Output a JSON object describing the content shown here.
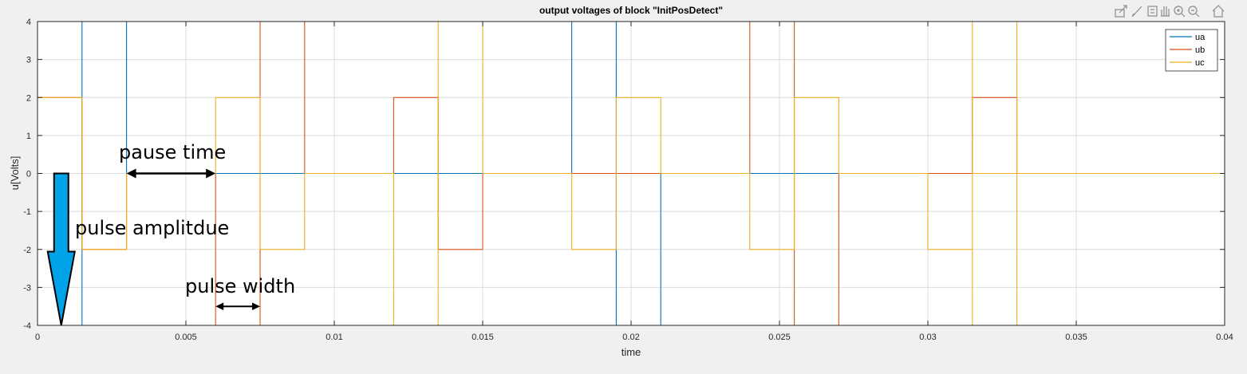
{
  "chart_data": {
    "type": "line",
    "title": "output voltages of block \"InitPosDetect\"",
    "xlabel": "time",
    "ylabel": "u[Volts]",
    "xlim": [
      0,
      0.04
    ],
    "ylim": [
      -4,
      4
    ],
    "xticks": [
      0,
      0.005,
      0.01,
      0.015,
      0.02,
      0.025,
      0.03,
      0.035,
      0.04
    ],
    "xtick_labels": [
      "0",
      "0.005",
      "0.01",
      "0.015",
      "0.02",
      "0.025",
      "0.03",
      "0.035",
      "0.04"
    ],
    "yticks": [
      -4,
      -3,
      -2,
      -1,
      0,
      1,
      2,
      3,
      4
    ],
    "ytick_labels": [
      "-4",
      "-3",
      "-2",
      "-1",
      "0",
      "1",
      "2",
      "3",
      "4"
    ],
    "grid": true,
    "legend_position": "top-right",
    "series": [
      {
        "name": "ua",
        "color": "#0072BD",
        "points": [
          [
            0,
            -4
          ],
          [
            0.0015,
            -4
          ],
          [
            0.0015,
            4
          ],
          [
            0.003,
            4
          ],
          [
            0.003,
            0
          ],
          [
            0.018,
            0
          ],
          [
            0.018,
            4
          ],
          [
            0.0195,
            4
          ],
          [
            0.0195,
            -4
          ],
          [
            0.021,
            -4
          ],
          [
            0.021,
            0
          ],
          [
            0.04,
            0
          ]
        ]
      },
      {
        "name": "ub",
        "color": "#D95319",
        "points": [
          [
            0,
            2
          ],
          [
            0.0015,
            2
          ],
          [
            0.0015,
            -2
          ],
          [
            0.003,
            -2
          ],
          [
            0.003,
            0
          ],
          [
            0.006,
            0
          ],
          [
            0.006,
            -4
          ],
          [
            0.0075,
            -4
          ],
          [
            0.0075,
            4
          ],
          [
            0.009,
            4
          ],
          [
            0.009,
            0
          ],
          [
            0.012,
            0
          ],
          [
            0.012,
            2
          ],
          [
            0.0135,
            2
          ],
          [
            0.0135,
            -2
          ],
          [
            0.015,
            -2
          ],
          [
            0.015,
            0
          ],
          [
            0.024,
            0
          ],
          [
            0.024,
            4
          ],
          [
            0.0255,
            4
          ],
          [
            0.0255,
            -4
          ],
          [
            0.027,
            -4
          ],
          [
            0.027,
            0
          ],
          [
            0.0315,
            0
          ],
          [
            0.0315,
            2
          ],
          [
            0.033,
            2
          ],
          [
            0.033,
            0
          ],
          [
            0.04,
            0
          ]
        ]
      },
      {
        "name": "uc",
        "color": "#EDB120",
        "points": [
          [
            0,
            2
          ],
          [
            0.0015,
            2
          ],
          [
            0.0015,
            -2
          ],
          [
            0.003,
            -2
          ],
          [
            0.003,
            0
          ],
          [
            0.006,
            0
          ],
          [
            0.006,
            2
          ],
          [
            0.0075,
            2
          ],
          [
            0.0075,
            -2
          ],
          [
            0.009,
            -2
          ],
          [
            0.009,
            0
          ],
          [
            0.012,
            0
          ],
          [
            0.012,
            -4
          ],
          [
            0.0135,
            -4
          ],
          [
            0.0135,
            4
          ],
          [
            0.015,
            4
          ],
          [
            0.015,
            0
          ],
          [
            0.018,
            0
          ],
          [
            0.018,
            -2
          ],
          [
            0.0195,
            -2
          ],
          [
            0.0195,
            2
          ],
          [
            0.021,
            2
          ],
          [
            0.021,
            0
          ],
          [
            0.024,
            0
          ],
          [
            0.024,
            -2
          ],
          [
            0.0255,
            -2
          ],
          [
            0.0255,
            2
          ],
          [
            0.027,
            2
          ],
          [
            0.027,
            0
          ],
          [
            0.03,
            0
          ],
          [
            0.03,
            -2
          ],
          [
            0.0315,
            -2
          ],
          [
            0.0315,
            4
          ],
          [
            0.033,
            4
          ],
          [
            0.033,
            -4
          ],
          [
            0.0315,
            -4
          ],
          [
            0.0315,
            0
          ],
          [
            0.04,
            0
          ]
        ]
      }
    ],
    "annotations": [
      {
        "name": "pulse-amplitude",
        "text": "pulse amplitdue",
        "x": 0.0008,
        "y": 0
      },
      {
        "name": "pause-time",
        "text": "pause time",
        "x_start": 0.003,
        "x_end": 0.006,
        "y": 0
      },
      {
        "name": "pulse-width",
        "text": "pulse width",
        "x_start": 0.006,
        "x_end": 0.0075,
        "y": -3.5
      }
    ]
  },
  "toolbar": {
    "icons": [
      "export-icon",
      "brush-icon",
      "data-tips-icon",
      "pan-icon",
      "zoom-in-icon",
      "zoom-out-icon",
      "home-icon"
    ]
  }
}
